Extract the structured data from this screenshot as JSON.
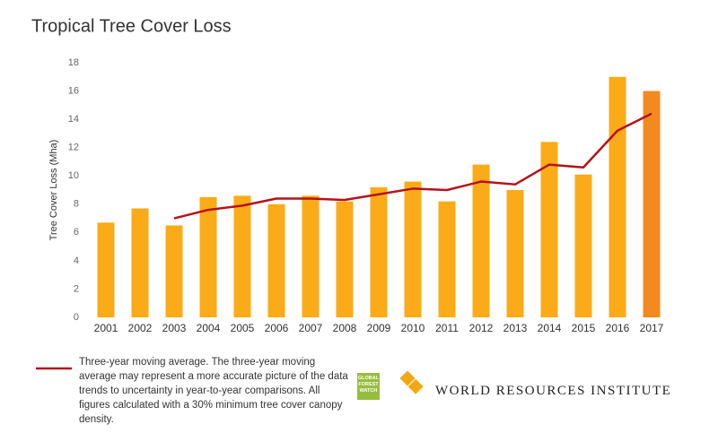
{
  "chart_data": {
    "type": "bar",
    "title": "Tropical Tree Cover Loss",
    "y_label": "Tree Cover Loss (Mha)",
    "categories": [
      "2001",
      "2002",
      "2003",
      "2004",
      "2005",
      "2006",
      "2007",
      "2008",
      "2009",
      "2010",
      "2011",
      "2012",
      "2013",
      "2014",
      "2015",
      "2016",
      "2017"
    ],
    "series": [
      {
        "name": "Tree Cover Loss",
        "type": "bar",
        "colors": [
          "#fbab18",
          "#fbab18",
          "#fbab18",
          "#fbab18",
          "#fbab18",
          "#fbab18",
          "#fbab18",
          "#fbab18",
          "#fbab18",
          "#fbab18",
          "#fbab18",
          "#fbab18",
          "#fbab18",
          "#fbab18",
          "#fbab18",
          "#fbab18",
          "#f28a1f"
        ],
        "values": [
          6.7,
          7.7,
          6.5,
          8.5,
          8.6,
          8.0,
          8.6,
          8.2,
          9.2,
          9.6,
          8.2,
          10.8,
          9.0,
          12.4,
          10.1,
          17.0,
          16.0
        ]
      },
      {
        "name": "Three-year moving average.",
        "type": "line",
        "color": "#b5121b",
        "values": [
          null,
          null,
          7.0,
          7.6,
          7.9,
          8.4,
          8.4,
          8.3,
          8.7,
          9.1,
          9.0,
          9.6,
          9.4,
          10.8,
          10.6,
          13.2,
          14.4
        ]
      }
    ],
    "legend_note": "The three-year moving average may represent a more accurate picture of the data trends to uncertainty in year-to-year comparisons. All figures calculated with a 30% minimum tree cover canopy density.",
    "ylim": [
      0,
      18
    ],
    "yticks": [
      0,
      2,
      4,
      6,
      8,
      10,
      12,
      14,
      16,
      18
    ],
    "grid": false,
    "logos": [
      "GLOBAL FOREST WATCH",
      "WORLD RESOURCES INSTITUTE"
    ]
  }
}
